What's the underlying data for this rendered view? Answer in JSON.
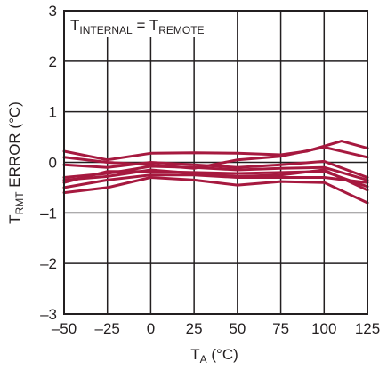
{
  "chart_data": {
    "type": "line",
    "annotation": {
      "main1": "T",
      "sub1": "INTERNAL",
      "eq": " = ",
      "main2": "T",
      "sub2": "REMOTE"
    },
    "xlabel": {
      "main": "T",
      "sub": "A",
      "rest": " (°C)"
    },
    "ylabel": {
      "main": "T",
      "sub": "RMT",
      "rest": " ERROR (°C)"
    },
    "xlim": [
      -50,
      125
    ],
    "ylim": [
      -3,
      3
    ],
    "x_ticks": [
      -50,
      -25,
      0,
      25,
      50,
      75,
      100,
      125
    ],
    "y_ticks": [
      -3,
      -2,
      -1,
      0,
      1,
      2,
      3
    ],
    "x_tick_labels": [
      "–50",
      "–25",
      "0",
      "25",
      "50",
      "75",
      "100",
      "125"
    ],
    "y_tick_labels": [
      "–3",
      "–2",
      "–1",
      "0",
      "1",
      "2",
      "3"
    ],
    "grid": true,
    "line_color": "#a6193f",
    "axis_color": "#231f20",
    "series": [
      {
        "x": [
          -50,
          -25,
          0,
          25,
          50,
          75,
          90,
          110,
          125
        ],
        "values": [
          0.22,
          0.05,
          0.18,
          0.19,
          0.18,
          0.15,
          0.22,
          0.42,
          0.28
        ]
      },
      {
        "x": [
          -50,
          -25,
          0,
          25,
          50,
          75,
          100,
          125
        ],
        "values": [
          0.1,
          0.0,
          -0.05,
          -0.12,
          0.05,
          0.12,
          0.3,
          0.1
        ]
      },
      {
        "x": [
          -50,
          -25,
          0,
          25,
          50,
          75,
          100,
          125
        ],
        "values": [
          -0.05,
          -0.1,
          0.0,
          -0.05,
          -0.1,
          -0.05,
          0.02,
          -0.3
        ]
      },
      {
        "x": [
          -50,
          -25,
          0,
          25,
          50,
          75,
          100,
          125
        ],
        "values": [
          -0.3,
          -0.22,
          -0.08,
          -0.1,
          -0.15,
          -0.12,
          -0.1,
          -0.35
        ]
      },
      {
        "x": [
          -50,
          -25,
          0,
          25,
          50,
          75,
          100,
          125
        ],
        "values": [
          -0.4,
          -0.18,
          -0.18,
          -0.2,
          -0.22,
          -0.2,
          -0.18,
          -0.48
        ]
      },
      {
        "x": [
          -50,
          -25,
          0,
          25,
          50,
          75,
          100,
          125
        ],
        "values": [
          -0.5,
          -0.35,
          -0.25,
          -0.25,
          -0.3,
          -0.3,
          -0.3,
          -0.4
        ]
      },
      {
        "x": [
          -50,
          -25,
          0,
          25,
          50,
          75,
          100,
          125
        ],
        "values": [
          -0.6,
          -0.5,
          -0.3,
          -0.35,
          -0.45,
          -0.38,
          -0.4,
          -0.8
        ]
      },
      {
        "x": [
          -50,
          -25,
          0,
          25,
          50,
          75,
          100,
          125
        ],
        "values": [
          -0.35,
          -0.28,
          -0.15,
          -0.22,
          -0.28,
          -0.25,
          -0.15,
          -0.55
        ]
      }
    ]
  }
}
